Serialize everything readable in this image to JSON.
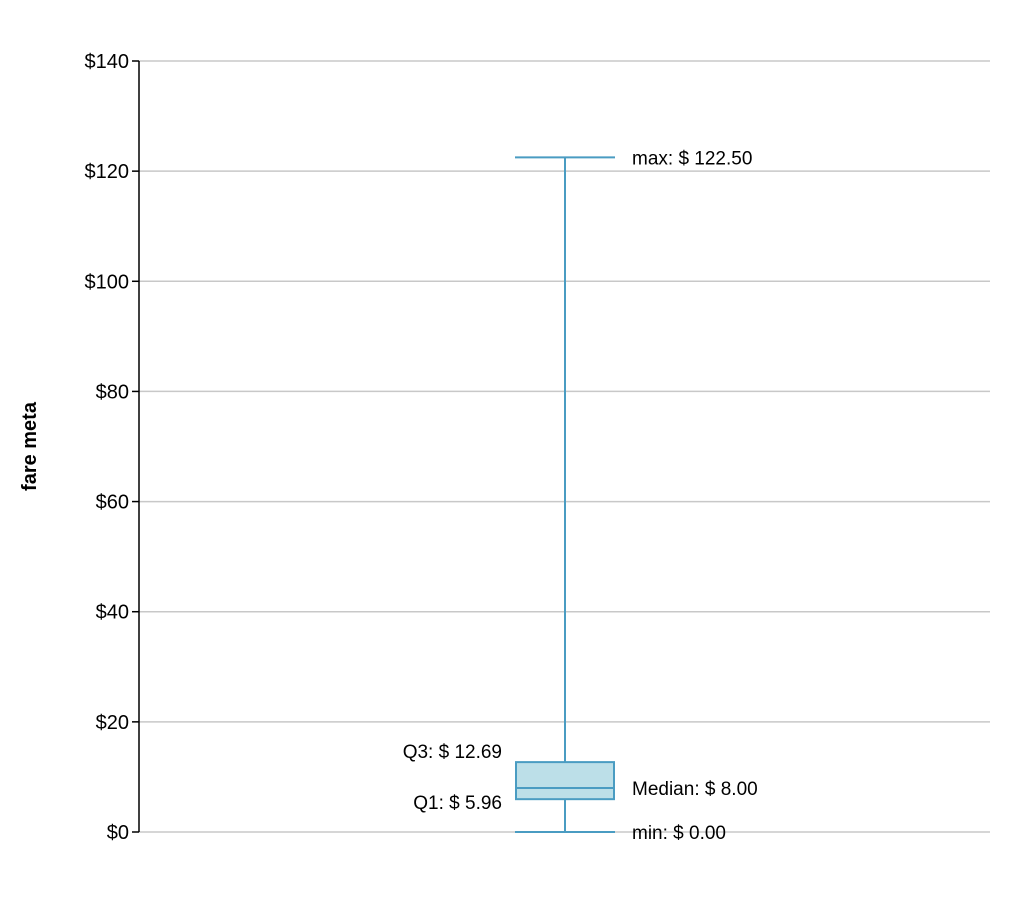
{
  "chart_data": {
    "type": "box",
    "ylabel": "fare meta",
    "ylim": [
      0,
      140
    ],
    "yticks": [
      0,
      20,
      40,
      60,
      80,
      100,
      120,
      140
    ],
    "ytick_labels": [
      "$0",
      "$20",
      "$40",
      "$60",
      "$80",
      "$100",
      "$120",
      "$140"
    ],
    "grid": true,
    "box": {
      "min": 0.0,
      "q1": 5.96,
      "median": 8.0,
      "q3": 12.69,
      "max": 122.5
    },
    "annotations": {
      "max": "max: $ 122.50",
      "q3": "Q3: $ 12.69",
      "median": "Median: $ 8.00",
      "q1": "Q1: $ 5.96",
      "min": "min: $ 0.00"
    },
    "colors": {
      "box_fill": "#bcdfe8",
      "box_stroke": "#4a9cc2",
      "whisker": "#4a9cc2",
      "grid": "#c8c8c8",
      "axis": "#000000"
    }
  }
}
